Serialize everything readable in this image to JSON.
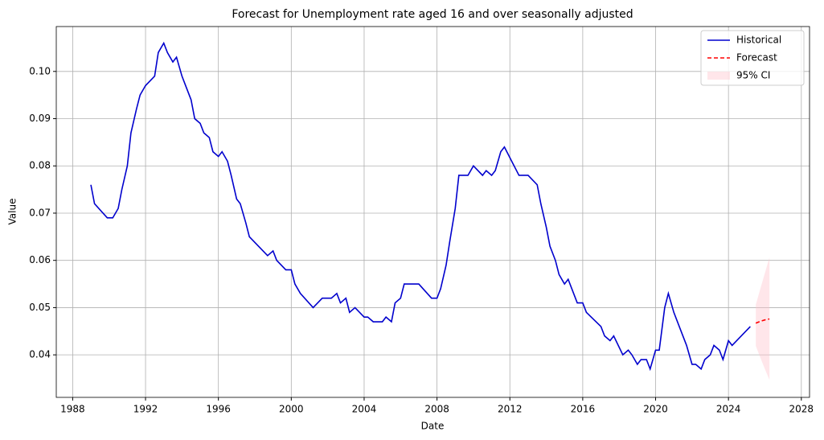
{
  "chart_data": {
    "type": "line",
    "title": "Forecast for Unemployment rate aged 16 and over seasonally adjusted",
    "xlabel": "Date",
    "ylabel": "Value",
    "xlim": [
      1987.1,
      2028.45
    ],
    "ylim": [
      0.031,
      0.1095
    ],
    "xticks": [
      1988,
      1992,
      1996,
      2000,
      2004,
      2008,
      2012,
      2016,
      2020,
      2024,
      2028
    ],
    "yticks": [
      0.04,
      0.05,
      0.06,
      0.07,
      0.08,
      0.09,
      {
        "value": 0.1,
        "label": "0.10"
      }
    ],
    "grid": true,
    "legend": "upper right",
    "series": [
      {
        "name": "Historical",
        "color": "#0000cd",
        "style": "solid",
        "x": [
          1989.0,
          1989.2,
          1989.9,
          1990.2,
          1990.5,
          1990.7,
          1991.0,
          1991.2,
          1991.5,
          1991.7,
          1992.0,
          1992.5,
          1992.7,
          1993.0,
          1993.2,
          1993.5,
          1993.7,
          1994.0,
          1994.2,
          1994.5,
          1994.7,
          1995.0,
          1995.2,
          1995.5,
          1995.7,
          1996.0,
          1996.2,
          1996.5,
          1996.7,
          1997.0,
          1997.2,
          1997.5,
          1997.7,
          1998.7,
          1999.0,
          1999.2,
          1999.7,
          2000.0,
          2000.2,
          2000.5,
          2001.2,
          2001.7,
          2002.2,
          2002.5,
          2002.7,
          2003.0,
          2003.2,
          2003.5,
          2004.0,
          2004.2,
          2004.5,
          2005.0,
          2005.2,
          2005.5,
          2005.7,
          2006.0,
          2006.2,
          2007.0,
          2007.7,
          2008.0,
          2008.2,
          2008.5,
          2008.7,
          2009.0,
          2009.2,
          2009.7,
          2010.0,
          2010.5,
          2010.7,
          2011.0,
          2011.2,
          2011.5,
          2011.7,
          2012.5,
          2013.0,
          2013.5,
          2013.7,
          2014.0,
          2014.2,
          2014.5,
          2014.7,
          2015.0,
          2015.2,
          2015.5,
          2015.7,
          2016.0,
          2016.2,
          2017.0,
          2017.2,
          2017.5,
          2017.7,
          2018.2,
          2018.5,
          2018.7,
          2019.0,
          2019.2,
          2019.5,
          2019.7,
          2020.0,
          2020.2,
          2020.5,
          2020.7,
          2021.0,
          2021.2,
          2021.5,
          2021.7,
          2022.0,
          2022.2,
          2022.5,
          2022.7,
          2023.0,
          2023.2,
          2023.5,
          2023.7,
          2024.0,
          2024.2,
          2025.2
        ],
        "values": [
          0.076,
          0.072,
          0.069,
          0.069,
          0.071,
          0.075,
          0.08,
          0.087,
          0.092,
          0.095,
          0.097,
          0.099,
          0.104,
          0.106,
          0.104,
          0.102,
          0.103,
          0.099,
          0.097,
          0.094,
          0.09,
          0.089,
          0.087,
          0.086,
          0.083,
          0.082,
          0.083,
          0.081,
          0.078,
          0.073,
          0.072,
          0.068,
          0.065,
          0.061,
          0.062,
          0.06,
          0.058,
          0.058,
          0.055,
          0.053,
          0.05,
          0.052,
          0.052,
          0.053,
          0.051,
          0.052,
          0.049,
          0.05,
          0.048,
          0.048,
          0.047,
          0.047,
          0.048,
          0.047,
          0.051,
          0.052,
          0.055,
          0.055,
          0.052,
          0.052,
          0.054,
          0.059,
          0.064,
          0.071,
          0.078,
          0.078,
          0.08,
          0.078,
          0.079,
          0.078,
          0.079,
          0.083,
          0.084,
          0.078,
          0.078,
          0.076,
          0.072,
          0.067,
          0.063,
          0.06,
          0.057,
          0.055,
          0.056,
          0.053,
          0.051,
          0.051,
          0.049,
          0.046,
          0.044,
          0.043,
          0.044,
          0.04,
          0.041,
          0.04,
          0.038,
          0.039,
          0.039,
          0.037,
          0.041,
          0.041,
          0.05,
          0.053,
          0.049,
          0.047,
          0.044,
          0.042,
          0.038,
          0.038,
          0.037,
          0.039,
          0.04,
          0.042,
          0.041,
          0.039,
          0.043,
          0.042,
          0.046
        ]
      },
      {
        "name": "Forecast",
        "color": "#ff0000",
        "style": "dashed",
        "x": [
          2025.5,
          2025.75,
          2026.0,
          2026.25
        ],
        "values": [
          0.0467,
          0.0471,
          0.0474,
          0.0476
        ]
      }
    ],
    "ci": {
      "name": "95% CI",
      "color": "#ffc0cb",
      "x": [
        2025.5,
        2025.75,
        2026.0,
        2026.25
      ],
      "lower": [
        0.0419,
        0.0394,
        0.037,
        0.0347
      ],
      "upper": [
        0.0506,
        0.054,
        0.0573,
        0.0606
      ]
    }
  }
}
